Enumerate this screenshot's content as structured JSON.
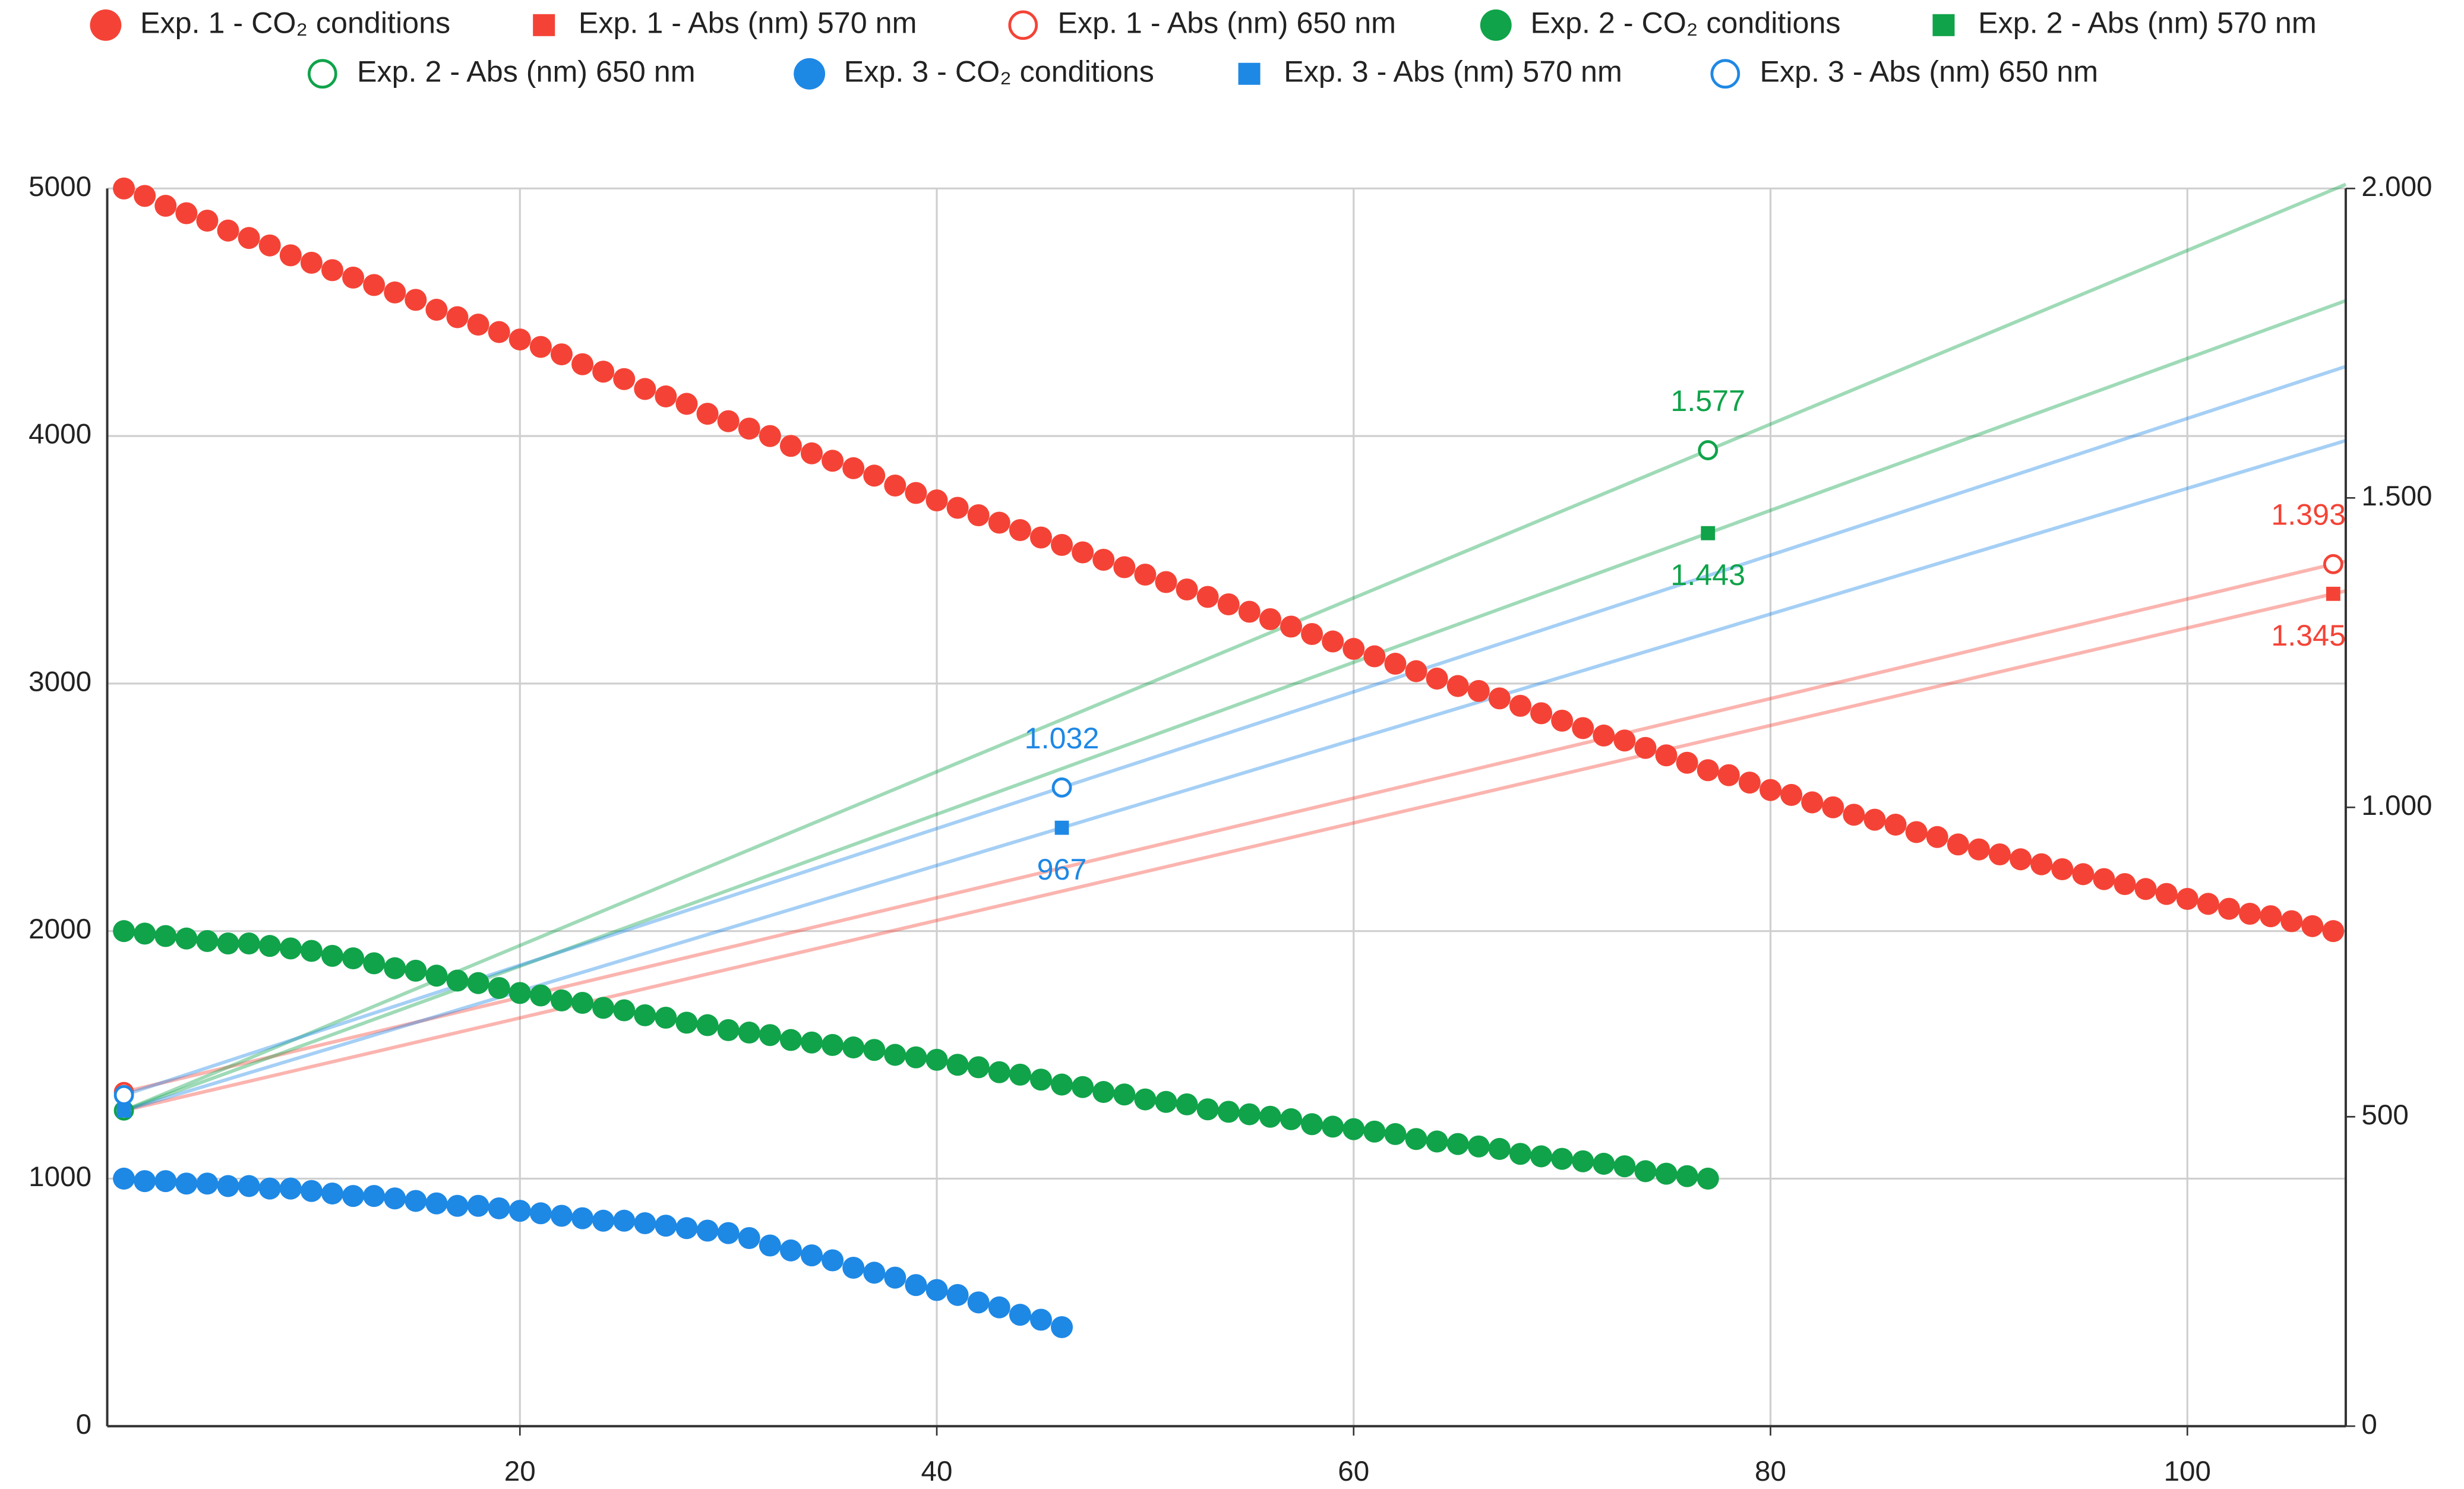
{
  "chart_data": {
    "type": "scatter",
    "x": [
      1,
      2,
      3,
      4,
      5,
      6,
      7,
      8,
      9,
      10,
      11,
      12,
      13,
      14,
      15,
      16,
      17,
      18,
      19,
      20,
      21,
      22,
      23,
      24,
      25,
      26,
      27,
      28,
      29,
      30,
      31,
      32,
      33,
      34,
      35,
      36,
      37,
      38,
      39,
      40,
      41,
      42,
      43,
      44,
      45,
      46,
      47,
      48,
      49,
      50,
      51,
      52,
      53,
      54,
      55,
      56,
      57,
      58,
      59,
      60,
      61,
      62,
      63,
      64,
      65,
      66,
      67,
      68,
      69,
      70,
      71,
      72,
      73,
      74,
      75,
      76,
      77,
      78,
      79,
      80,
      81,
      82,
      83,
      84,
      85,
      86,
      87,
      88,
      89,
      90,
      91,
      92,
      93,
      94,
      95,
      96,
      97,
      98,
      99,
      100,
      101,
      102,
      103,
      104,
      105,
      106,
      107
    ],
    "xlim": [
      0.2,
      107.6
    ],
    "xticks": [
      20,
      40,
      60,
      80,
      100
    ],
    "ylim": [
      0,
      5000
    ],
    "yticks": [
      0,
      1000,
      2000,
      3000,
      4000,
      5000
    ],
    "y2lim": [
      0,
      2000
    ],
    "y2ticks": [
      0,
      500,
      {
        "value": 1000,
        "label": "1.000"
      },
      {
        "value": 1500,
        "label": "1.500"
      },
      {
        "value": 2000,
        "label": "2.000"
      }
    ],
    "grid": true,
    "legend": "top",
    "series": [
      {
        "name": "Exp. 1 - CO₂ conditions",
        "color": "#f44336",
        "marker": "circle",
        "values": [
          5000,
          4970,
          4930,
          4900,
          4870,
          4830,
          4800,
          4770,
          4730,
          4700,
          4670,
          4640,
          4610,
          4580,
          4550,
          4510,
          4480,
          4450,
          4420,
          4390,
          4360,
          4330,
          4290,
          4260,
          4230,
          4190,
          4160,
          4130,
          4090,
          4060,
          4030,
          4000,
          3960,
          3930,
          3900,
          3870,
          3840,
          3800,
          3770,
          3740,
          3710,
          3680,
          3650,
          3620,
          3590,
          3560,
          3530,
          3500,
          3470,
          3440,
          3410,
          3380,
          3350,
          3320,
          3290,
          3260,
          3230,
          3200,
          3170,
          3140,
          3110,
          3080,
          3050,
          3020,
          2990,
          2970,
          2940,
          2910,
          2880,
          2850,
          2820,
          2790,
          2770,
          2740,
          2710,
          2680,
          2650,
          2630,
          2600,
          2570,
          2550,
          2520,
          2500,
          2470,
          2450,
          2430,
          2400,
          2380,
          2350,
          2330,
          2310,
          2290,
          2270,
          2250,
          2230,
          2210,
          2190,
          2170,
          2150,
          2130,
          2110,
          2090,
          2070,
          2060,
          2040,
          2020,
          2000
        ]
      },
      {
        "name": "Exp. 1 - Abs (nm) 570 nm",
        "color": "#f44336",
        "marker": "square",
        "axis": "y2",
        "trendline": true,
        "label_last": "below",
        "x": [
          1,
          107
        ],
        "values": [
          510,
          1345
        ],
        "value_labels": [
          null,
          "1.345"
        ]
      },
      {
        "name": "Exp. 1 - Abs (nm) 650 nm",
        "color": "#f44336",
        "marker": "open-circle",
        "axis": "y2",
        "trendline": true,
        "label_last": "above",
        "x": [
          1,
          107
        ],
        "values": [
          540,
          1393
        ],
        "value_labels": [
          null,
          "1.393"
        ]
      },
      {
        "name": "Exp. 2 - CO₂ conditions",
        "color": "#10a34a",
        "marker": "circle",
        "values": [
          2000,
          1990,
          1980,
          1970,
          1960,
          1950,
          1950,
          1940,
          1930,
          1920,
          1900,
          1890,
          1870,
          1850,
          1840,
          1820,
          1800,
          1790,
          1770,
          1750,
          1740,
          1720,
          1710,
          1690,
          1680,
          1660,
          1650,
          1630,
          1620,
          1600,
          1590,
          1580,
          1560,
          1550,
          1540,
          1530,
          1520,
          1500,
          1490,
          1480,
          1460,
          1450,
          1430,
          1420,
          1400,
          1380,
          1370,
          1350,
          1340,
          1320,
          1310,
          1300,
          1280,
          1270,
          1260,
          1250,
          1240,
          1220,
          1210,
          1200,
          1190,
          1180,
          1160,
          1150,
          1140,
          1130,
          1120,
          1100,
          1090,
          1080,
          1070,
          1060,
          1050,
          1030,
          1020,
          1010,
          1000,
          null,
          null,
          null,
          null,
          null,
          null,
          null,
          null,
          null,
          null,
          null,
          null,
          null,
          null,
          null,
          null,
          null,
          null,
          null,
          null,
          null,
          null,
          null,
          null,
          null,
          null,
          null,
          null,
          null,
          null
        ]
      },
      {
        "name": "Exp. 2 - Abs (nm) 570 nm",
        "color": "#10a34a",
        "marker": "square",
        "axis": "y2",
        "trendline": true,
        "label_last": "below",
        "x": [
          1,
          77
        ],
        "values": [
          510,
          1443
        ],
        "value_labels": [
          null,
          "1.443"
        ]
      },
      {
        "name": "Exp. 2 - Abs (nm) 650 nm",
        "color": "#10a34a",
        "marker": "open-circle",
        "axis": "y2",
        "trendline": true,
        "label_last": "above",
        "x": [
          1,
          77
        ],
        "values": [
          510,
          1577
        ],
        "value_labels": [
          null,
          "1.577"
        ]
      },
      {
        "name": "Exp. 3 - CO₂ conditions",
        "color": "#1e88e5",
        "marker": "circle",
        "values": [
          1000,
          990,
          990,
          980,
          980,
          970,
          970,
          960,
          960,
          950,
          940,
          930,
          930,
          920,
          910,
          900,
          890,
          890,
          880,
          870,
          860,
          850,
          840,
          830,
          830,
          820,
          810,
          800,
          790,
          780,
          760,
          730,
          710,
          690,
          670,
          640,
          620,
          600,
          570,
          550,
          530,
          500,
          480,
          450,
          430,
          400,
          null,
          null,
          null,
          null,
          null,
          null,
          null,
          null,
          null,
          null,
          null,
          null,
          null,
          null,
          null,
          null,
          null,
          null,
          null,
          null,
          null,
          null,
          null,
          null,
          null,
          null,
          null,
          null,
          null,
          null,
          null,
          null,
          null,
          null,
          null,
          null,
          null,
          null,
          null,
          null,
          null,
          null,
          null,
          null,
          null,
          null,
          null,
          null,
          null,
          null,
          null,
          null,
          null,
          null,
          null,
          null,
          null,
          null,
          null,
          null,
          null
        ]
      },
      {
        "name": "Exp. 3 - Abs (nm) 570 nm",
        "color": "#1e88e5",
        "marker": "square",
        "axis": "y2",
        "trendline": true,
        "label_last": "below",
        "x": [
          1,
          46
        ],
        "values": [
          510,
          967
        ]
      },
      {
        "name": "Exp. 3 - Abs (nm) 650 nm",
        "color": "#1e88e5",
        "marker": "open-circle",
        "axis": "y2",
        "trendline": true,
        "label_last": "above",
        "x": [
          1,
          46
        ],
        "values": [
          535,
          1032
        ],
        "value_labels": [
          null,
          "1.032"
        ]
      }
    ]
  }
}
